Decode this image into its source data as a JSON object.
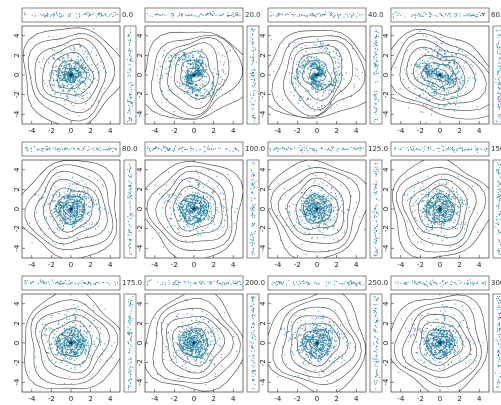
{
  "chart_data": {
    "type": "scatter",
    "layout": "3x4 grid of snapshot panels (main scatter + contour, top projection strip, right projection strip)",
    "x_ticks": [
      "-4",
      "-2",
      "0",
      "2",
      "4"
    ],
    "y_ticks": [
      "-4",
      "-2",
      "0",
      "2",
      "4"
    ],
    "xlim": [
      -5,
      5
    ],
    "ylim": [
      -5,
      5
    ],
    "point_color": "#1a7fa6",
    "contour_color": "#333333",
    "panels": [
      {
        "time": "0.0",
        "pattern": "disk"
      },
      {
        "time": "20.0",
        "pattern": "spiral-2arm"
      },
      {
        "time": "40.0",
        "pattern": "strong-spiral"
      },
      {
        "time": "60.0",
        "pattern": "bar"
      },
      {
        "time": "80.0",
        "pattern": "ring"
      },
      {
        "time": "100.0",
        "pattern": "ring"
      },
      {
        "time": "125.0",
        "pattern": "ring"
      },
      {
        "time": "150.0",
        "pattern": "ring"
      },
      {
        "time": "175.0",
        "pattern": "ring"
      },
      {
        "time": "200.0",
        "pattern": "ring"
      },
      {
        "time": "250.0",
        "pattern": "ring"
      },
      {
        "time": "300.0",
        "pattern": "ring"
      }
    ]
  }
}
